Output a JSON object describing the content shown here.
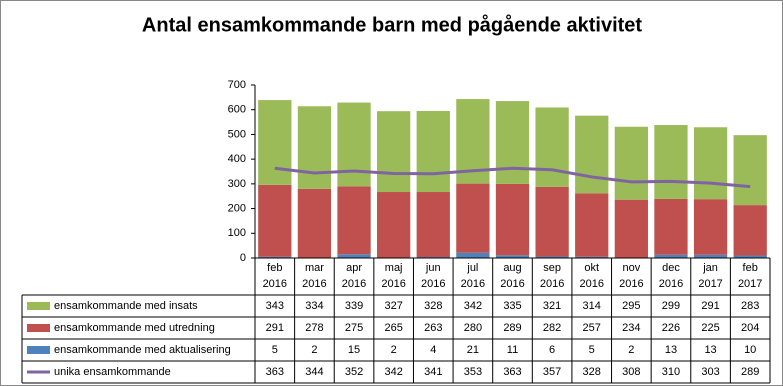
{
  "chart_data": {
    "type": "bar",
    "title": "Antal ensamkommande barn med pågående aktivitet",
    "categories": [
      "feb 2016",
      "mar 2016",
      "apr 2016",
      "maj 2016",
      "jun 2016",
      "jul 2016",
      "aug 2016",
      "sep 2016",
      "okt 2016",
      "nov 2016",
      "dec 2016",
      "jan 2017",
      "feb 2017"
    ],
    "series": [
      {
        "name": "ensamkommande med insats",
        "color": "#9bbb59",
        "values": [
          343,
          334,
          339,
          327,
          328,
          342,
          335,
          321,
          314,
          295,
          299,
          291,
          283
        ]
      },
      {
        "name": "ensamkommande med utredning",
        "color": "#c0504d",
        "values": [
          291,
          278,
          275,
          265,
          263,
          280,
          289,
          282,
          257,
          234,
          226,
          225,
          204
        ]
      },
      {
        "name": "ensamkommande med aktualisering",
        "color": "#4f81bd",
        "values": [
          5,
          2,
          15,
          2,
          4,
          21,
          11,
          6,
          5,
          2,
          13,
          13,
          10
        ]
      },
      {
        "name": "unika ensamkommande",
        "color": "#8064a2",
        "type": "line",
        "values": [
          363,
          344,
          352,
          342,
          341,
          353,
          363,
          357,
          328,
          308,
          310,
          303,
          289
        ]
      }
    ],
    "stack_order": [
      2,
      1,
      0
    ],
    "ylim": [
      0,
      700
    ],
    "yticks": [
      0,
      100,
      200,
      300,
      400,
      500,
      600,
      700
    ]
  }
}
